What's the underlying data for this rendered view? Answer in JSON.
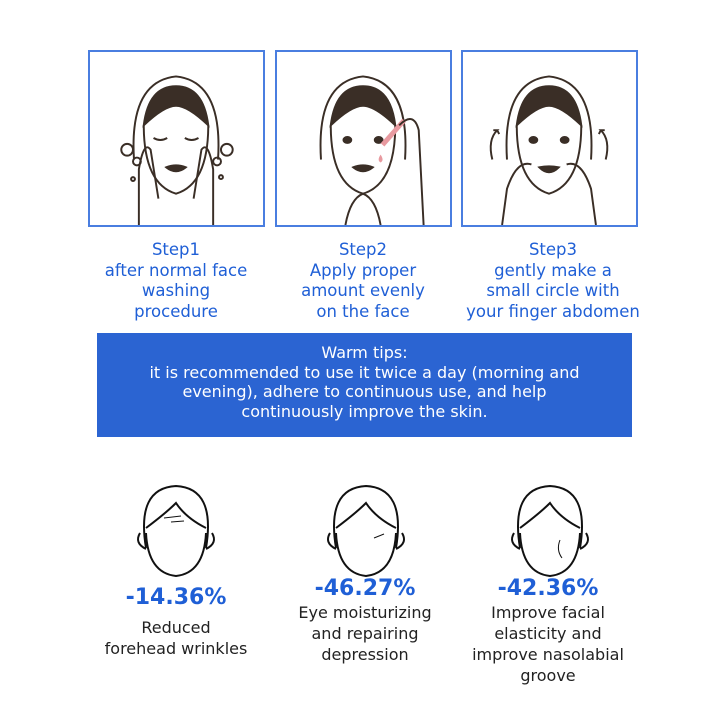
{
  "steps": [
    {
      "title": "Step1",
      "lines": [
        "after normal face",
        "washing",
        "procedure"
      ]
    },
    {
      "title": "Step2",
      "lines": [
        "Apply proper",
        "amount evenly",
        "on the face"
      ]
    },
    {
      "title": "Step3",
      "lines": [
        "gently make a",
        "small circle with",
        "your finger abdomen"
      ]
    }
  ],
  "tips": {
    "title": "Warm tips:",
    "lines": [
      "it is recommended to use it twice a day (morning and",
      "evening), adhere to continuous use, and help",
      "continuously improve the skin."
    ]
  },
  "results": [
    {
      "value": "-14.36%",
      "lines": [
        "Reduced",
        "forehead wrinkles"
      ]
    },
    {
      "value": "-46.27%",
      "lines": [
        "Eye moisturizing",
        "and repairing",
        "depression"
      ]
    },
    {
      "value": "-42.36%",
      "lines": [
        "Improve facial",
        "elasticity and",
        "improve nasolabial",
        "groove"
      ]
    }
  ],
  "colors": {
    "accent": "#1f5fd6",
    "banner": "#2b64d2",
    "panel_border": "#4a7ee0",
    "line_art": "#3a2e26"
  }
}
